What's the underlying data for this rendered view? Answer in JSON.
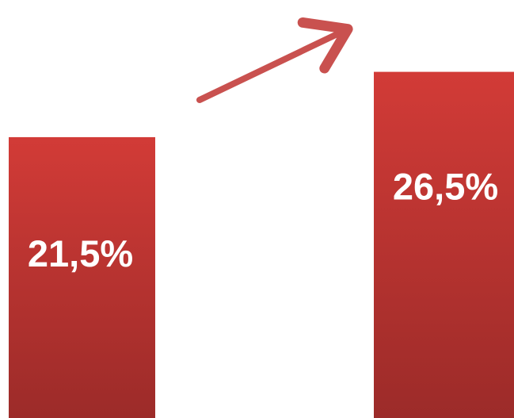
{
  "chart_data": {
    "type": "bar",
    "categories": [
      "",
      ""
    ],
    "values": [
      21.5,
      26.5
    ],
    "value_labels": [
      "21,5%",
      "26,5%"
    ],
    "title": "",
    "xlabel": "",
    "ylabel": "",
    "ylim": [
      0,
      32
    ],
    "grid": false,
    "legend": "none",
    "bar_color_top": "#d23b37",
    "bar_color_bottom": "#9c2b29",
    "annotation": {
      "type": "arrow",
      "meaning": "increase",
      "color": "#c9514f"
    }
  }
}
